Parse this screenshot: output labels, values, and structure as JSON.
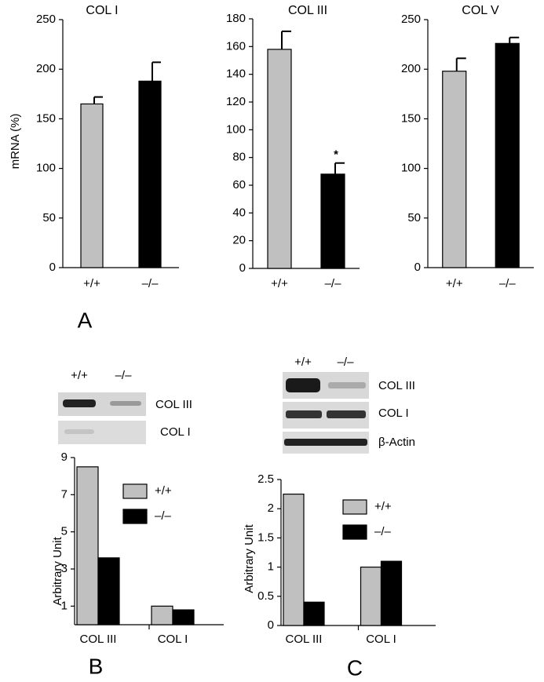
{
  "chart_data": [
    {
      "type": "bar",
      "title": "COL I",
      "ylabel": "mRNA (%)",
      "categories": [
        "+/+",
        "–/–"
      ],
      "values": [
        165,
        188
      ],
      "errors": [
        7,
        19
      ],
      "colors": [
        "#c0c0c0",
        "#000000"
      ],
      "ylim": [
        0,
        250
      ],
      "yticks": [
        0,
        50,
        100,
        150,
        200,
        250
      ]
    },
    {
      "type": "bar",
      "title": "COL III",
      "categories": [
        "+/+",
        "–/–"
      ],
      "values": [
        158,
        68
      ],
      "errors": [
        13,
        8
      ],
      "colors": [
        "#c0c0c0",
        "#000000"
      ],
      "annotation": "*",
      "ylim": [
        0,
        180
      ],
      "yticks": [
        0,
        20,
        40,
        60,
        80,
        100,
        120,
        140,
        160,
        180
      ]
    },
    {
      "type": "bar",
      "title": "COL V",
      "categories": [
        "+/+",
        "–/–"
      ],
      "values": [
        198,
        226
      ],
      "errors": [
        13,
        6
      ],
      "colors": [
        "#c0c0c0",
        "#000000"
      ],
      "ylim": [
        0,
        250
      ],
      "yticks": [
        0,
        50,
        100,
        150,
        200,
        250
      ]
    },
    {
      "type": "grouped_bar",
      "ylabel": "Arbitrary Unit",
      "categories": [
        "COL III",
        "COL I"
      ],
      "series": [
        {
          "name": "+/+",
          "color": "#c0c0c0",
          "values": [
            8.5,
            1.0
          ]
        },
        {
          "name": "–/–",
          "color": "#000000",
          "values": [
            3.6,
            0.8
          ]
        }
      ],
      "ylim": [
        0,
        9
      ],
      "yticks": [
        1,
        3,
        5,
        7,
        9
      ]
    },
    {
      "type": "grouped_bar",
      "ylabel": "Arbitrary Unit",
      "categories": [
        "COL III",
        "COL I"
      ],
      "series": [
        {
          "name": "+/+",
          "color": "#c0c0c0",
          "values": [
            2.25,
            1.0
          ]
        },
        {
          "name": "–/–",
          "color": "#000000",
          "values": [
            0.4,
            1.1
          ]
        }
      ],
      "ylim": [
        0,
        2.5
      ],
      "yticks": [
        0,
        0.5,
        1,
        1.5,
        2,
        2.5
      ]
    }
  ],
  "panels": [
    "A",
    "B",
    "C"
  ],
  "blots": [
    {
      "lanes": [
        "+/+",
        "–/–"
      ],
      "rows": [
        "COL III",
        "COL I"
      ]
    },
    {
      "lanes": [
        "+/+",
        "–/–"
      ],
      "rows": [
        "COL III",
        "COL I",
        "β-Actin"
      ]
    }
  ]
}
